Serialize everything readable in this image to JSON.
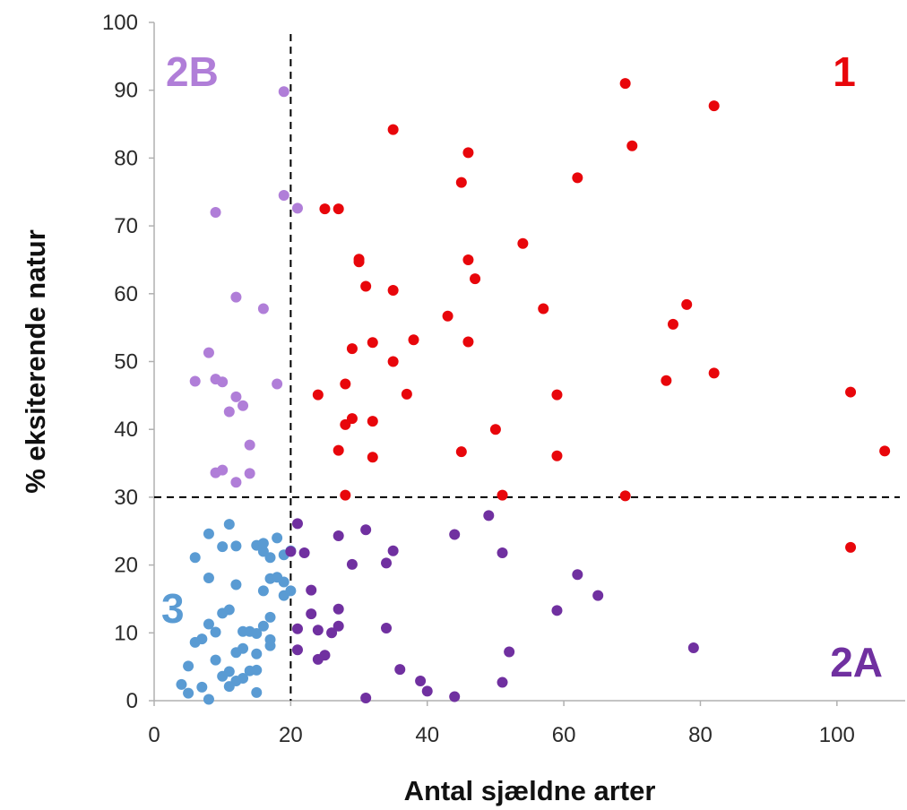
{
  "chart_data": {
    "type": "scatter",
    "title": "",
    "xlabel": "Antal sjældne arter",
    "ylabel": "% eksiterende natur",
    "xlim": [
      0,
      110
    ],
    "ylim": [
      0,
      100
    ],
    "xticks": [
      0,
      20,
      40,
      60,
      80,
      100
    ],
    "yticks": [
      0,
      10,
      20,
      30,
      40,
      50,
      60,
      70,
      80,
      90,
      100
    ],
    "grid": false,
    "threshold_lines": {
      "x": 20,
      "y": 30,
      "style": "dashed"
    },
    "quadrant_labels": [
      {
        "text": "1",
        "color": "#e8060b",
        "position": "top-right"
      },
      {
        "text": "2B",
        "color": "#b07ed8",
        "position": "top-left"
      },
      {
        "text": "3",
        "color": "#5a9bd3",
        "position": "bottom-left"
      },
      {
        "text": "2A",
        "color": "#7030a0",
        "position": "bottom-right"
      }
    ],
    "series": [
      {
        "group": "1",
        "color": "#e8060b",
        "points": [
          [
            69,
            91
          ],
          [
            82,
            87.7
          ],
          [
            35,
            84.2
          ],
          [
            46,
            80.8
          ],
          [
            70,
            81.8
          ],
          [
            62,
            77.1
          ],
          [
            45,
            76.4
          ],
          [
            25,
            72.5
          ],
          [
            27,
            72.5
          ],
          [
            54,
            67.4
          ],
          [
            30,
            65.1
          ],
          [
            30,
            64.7
          ],
          [
            46,
            65
          ],
          [
            31,
            61.1
          ],
          [
            35,
            60.5
          ],
          [
            47,
            62.2
          ],
          [
            43,
            56.7
          ],
          [
            57,
            57.8
          ],
          [
            78,
            58.4
          ],
          [
            76,
            55.5
          ],
          [
            29,
            51.9
          ],
          [
            32,
            52.8
          ],
          [
            38,
            53.2
          ],
          [
            46,
            52.9
          ],
          [
            35,
            50
          ],
          [
            82,
            48.3
          ],
          [
            28,
            46.7
          ],
          [
            24,
            45.1
          ],
          [
            37,
            45.2
          ],
          [
            59,
            45.1
          ],
          [
            75,
            47.2
          ],
          [
            102,
            45.5
          ],
          [
            29,
            41.6
          ],
          [
            28,
            40.7
          ],
          [
            32,
            41.2
          ],
          [
            50,
            40
          ],
          [
            27,
            36.9
          ],
          [
            32,
            35.9
          ],
          [
            45,
            36.7
          ],
          [
            59,
            36.1
          ],
          [
            107,
            36.8
          ],
          [
            28,
            30.3
          ],
          [
            51,
            30.3
          ],
          [
            69,
            30.2
          ],
          [
            102,
            22.6
          ]
        ]
      },
      {
        "group": "2B",
        "color": "#b07ed8",
        "points": [
          [
            19,
            89.8
          ],
          [
            19,
            74.5
          ],
          [
            21,
            72.6
          ],
          [
            9,
            72
          ],
          [
            12,
            59.5
          ],
          [
            16,
            57.8
          ],
          [
            8,
            51.3
          ],
          [
            6,
            47.1
          ],
          [
            9,
            47.4
          ],
          [
            10,
            47
          ],
          [
            18,
            46.7
          ],
          [
            12,
            44.8
          ],
          [
            11,
            42.6
          ],
          [
            13,
            43.5
          ],
          [
            14,
            37.7
          ],
          [
            9,
            33.6
          ],
          [
            10,
            34
          ],
          [
            14,
            33.5
          ],
          [
            12,
            32.2
          ]
        ]
      },
      {
        "group": "3",
        "color": "#5a9bd3",
        "points": [
          [
            11,
            26
          ],
          [
            8,
            24.6
          ],
          [
            10,
            22.7
          ],
          [
            12,
            22.8
          ],
          [
            15,
            22.9
          ],
          [
            16,
            23.2
          ],
          [
            18,
            24
          ],
          [
            16,
            22
          ],
          [
            6,
            21.1
          ],
          [
            17,
            21.1
          ],
          [
            19,
            21.5
          ],
          [
            20,
            22.1
          ],
          [
            17,
            18
          ],
          [
            18,
            18.2
          ],
          [
            19,
            17.5
          ],
          [
            20,
            16.2
          ],
          [
            19,
            15.5
          ],
          [
            8,
            18.1
          ],
          [
            12,
            17.1
          ],
          [
            16,
            16.2
          ],
          [
            11,
            13.4
          ],
          [
            10,
            12.9
          ],
          [
            17,
            12.3
          ],
          [
            16,
            11
          ],
          [
            8,
            11.3
          ],
          [
            9,
            10.1
          ],
          [
            13,
            10.2
          ],
          [
            14,
            10.2
          ],
          [
            15,
            9.9
          ],
          [
            17,
            9
          ],
          [
            17,
            8.1
          ],
          [
            7,
            9.1
          ],
          [
            6,
            8.6
          ],
          [
            13,
            7.7
          ],
          [
            12,
            7.1
          ],
          [
            15,
            6.9
          ],
          [
            9,
            6
          ],
          [
            11,
            4.3
          ],
          [
            14,
            4.4
          ],
          [
            15,
            4.5
          ],
          [
            5,
            5.1
          ],
          [
            10,
            3.6
          ],
          [
            13,
            3.3
          ],
          [
            12,
            2.9
          ],
          [
            4,
            2.4
          ],
          [
            7,
            2
          ],
          [
            11,
            2.1
          ],
          [
            5,
            1.1
          ],
          [
            15,
            1.2
          ],
          [
            8,
            0.2
          ]
        ]
      },
      {
        "group": "2A",
        "color": "#7030a0",
        "points": [
          [
            21,
            26.1
          ],
          [
            31,
            25.2
          ],
          [
            27,
            24.3
          ],
          [
            44,
            24.5
          ],
          [
            49,
            27.3
          ],
          [
            20,
            22
          ],
          [
            22,
            21.8
          ],
          [
            35,
            22.1
          ],
          [
            51,
            21.8
          ],
          [
            29,
            20.1
          ],
          [
            34,
            20.3
          ],
          [
            23,
            16.3
          ],
          [
            62,
            18.6
          ],
          [
            65,
            15.5
          ],
          [
            23,
            12.8
          ],
          [
            27,
            13.5
          ],
          [
            59,
            13.3
          ],
          [
            21,
            10.6
          ],
          [
            24,
            10.4
          ],
          [
            26,
            10
          ],
          [
            27,
            11
          ],
          [
            34,
            10.7
          ],
          [
            21,
            7.5
          ],
          [
            25,
            6.7
          ],
          [
            24,
            6.1
          ],
          [
            52,
            7.2
          ],
          [
            79,
            7.8
          ],
          [
            36,
            4.6
          ],
          [
            39,
            2.9
          ],
          [
            51,
            2.7
          ],
          [
            40,
            1.4
          ],
          [
            31,
            0.4
          ],
          [
            44,
            0.6
          ]
        ]
      }
    ]
  }
}
